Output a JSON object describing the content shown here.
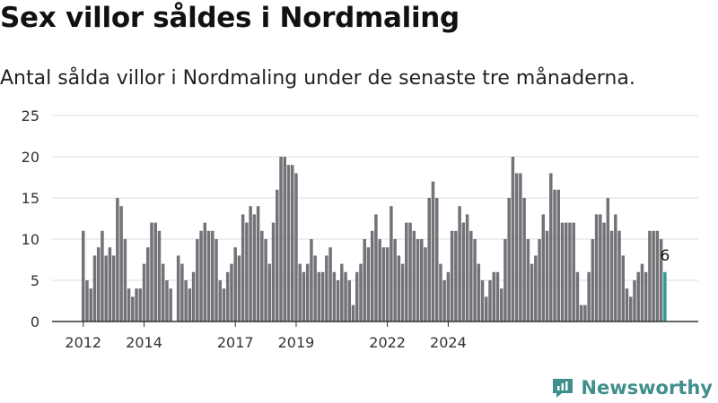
{
  "header": {
    "title": "Sex villor såldes i Nordmaling",
    "subtitle": "Antal sålda villor i Nordmaling under de senaste tre månaderna."
  },
  "brand": {
    "name": "Newsworthy",
    "color": "#3f8f8c"
  },
  "colors": {
    "bar": "#737278",
    "highlight": "#2e9c95",
    "grid": "#dcdcdc",
    "axis": "#333333"
  },
  "chart_data": {
    "type": "bar",
    "title": "Sex villor såldes i Nordmaling",
    "subtitle": "Antal sålda villor i Nordmaling under de senaste tre månaderna.",
    "ylim": [
      0,
      25
    ],
    "yticks": [
      0,
      5,
      10,
      15,
      20,
      25
    ],
    "xtick_labels": [
      "2012",
      "2014",
      "2017",
      "2019",
      "2022",
      "2024"
    ],
    "xtick_positions": [
      0,
      16,
      40,
      56,
      80,
      96
    ],
    "grid": true,
    "values": [
      11,
      5,
      4,
      8,
      9,
      11,
      8,
      9,
      8,
      15,
      14,
      10,
      4,
      3,
      4,
      4,
      7,
      9,
      12,
      12,
      11,
      7,
      5,
      4,
      0,
      8,
      7,
      5,
      4,
      6,
      10,
      11,
      12,
      11,
      11,
      10,
      5,
      4,
      6,
      7,
      9,
      8,
      13,
      12,
      14,
      13,
      14,
      11,
      10,
      7,
      12,
      16,
      20,
      20,
      19,
      19,
      18,
      7,
      6,
      7,
      10,
      8,
      6,
      6,
      8,
      9,
      6,
      5,
      7,
      6,
      5,
      2,
      6,
      7,
      10,
      9,
      11,
      13,
      10,
      9,
      9,
      14,
      10,
      8,
      7,
      12,
      12,
      11,
      10,
      10,
      9,
      15,
      17,
      15,
      7,
      5,
      6,
      11,
      11,
      14,
      12,
      13,
      11,
      10,
      7,
      5,
      3,
      5,
      6,
      6,
      4,
      10,
      15,
      20,
      18,
      18,
      15,
      10,
      7,
      8,
      10,
      13,
      11,
      18,
      16,
      16,
      12,
      12,
      12,
      12,
      6,
      2,
      2,
      6,
      10,
      13,
      13,
      12,
      15,
      11,
      13,
      11,
      8,
      4,
      3,
      5,
      6,
      7,
      6,
      11,
      11,
      11,
      10,
      6
    ],
    "highlight": {
      "index": 153,
      "label": "6"
    }
  }
}
